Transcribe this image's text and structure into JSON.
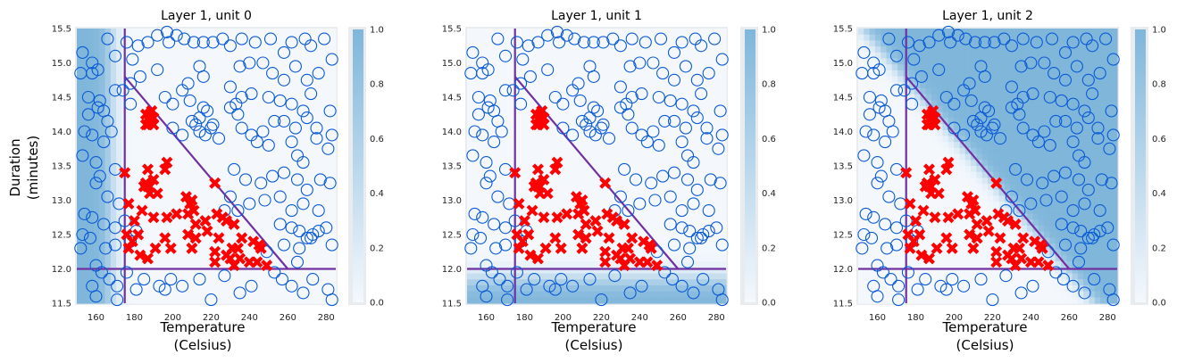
{
  "colors": {
    "low": "#f4f8fd",
    "high": "#7fb6da",
    "good_marker": "#ff0000",
    "bad_marker": "#0a5ad6",
    "lines": "#7030a0",
    "frame": "#e9ecef"
  },
  "shared": {
    "xlabel_line1": "Temperature",
    "xlabel_line2": "(Celsius)",
    "ylabel_line1": "Duration",
    "ylabel_line2": "(minutes)",
    "colorbar_ticks": [
      "0.0",
      "0.2",
      "0.4",
      "0.6",
      "0.8",
      "1.0"
    ]
  },
  "chart_data": [
    {
      "type": "scatter",
      "title": "Layer 1, unit 0",
      "xlabel": "Temperature (Celsius)",
      "ylabel": "Duration (minutes)",
      "xlim": [
        150,
        285
      ],
      "ylim": [
        11.5,
        15.5
      ],
      "xticks": [
        160,
        180,
        200,
        220,
        240,
        260,
        280
      ],
      "yticks": [
        11.5,
        12.0,
        12.5,
        13.0,
        13.5,
        14.0,
        14.5,
        15.0,
        15.5
      ],
      "background": "unit activation high where Temperature < ~175",
      "colorbar_range": [
        0,
        1
      ]
    },
    {
      "type": "scatter",
      "title": "Layer 1, unit 1",
      "xlabel": "Temperature (Celsius)",
      "ylabel": "",
      "xlim": [
        150,
        285
      ],
      "ylim": [
        11.5,
        15.5
      ],
      "xticks": [
        160,
        180,
        200,
        220,
        240,
        260,
        280
      ],
      "yticks": [
        11.5,
        12.0,
        12.5,
        13.0,
        13.5,
        14.0,
        14.5,
        15.0,
        15.5
      ],
      "background": "unit activation high where Duration < ~12",
      "colorbar_range": [
        0,
        1
      ]
    },
    {
      "type": "scatter",
      "title": "Layer 1, unit 2",
      "xlabel": "Temperature (Celsius)",
      "ylabel": "",
      "xlim": [
        150,
        285
      ],
      "ylim": [
        11.5,
        15.5
      ],
      "xticks": [
        160,
        180,
        200,
        220,
        240,
        260,
        280
      ],
      "yticks": [
        11.5,
        12.0,
        12.5,
        13.0,
        13.5,
        14.0,
        14.5,
        15.0,
        15.5
      ],
      "background": "unit activation high above diagonal line from (175,14.8) to (260,12)",
      "colorbar_range": [
        0,
        1
      ]
    }
  ],
  "boundaries": {
    "vertical_x": 175,
    "horizontal_y": 12.0,
    "diagonal": [
      [
        175,
        14.8
      ],
      [
        260,
        12.0
      ]
    ]
  },
  "points": {
    "good": [
      [
        186,
        14.25
      ],
      [
        188,
        14.15
      ],
      [
        190,
        14.2
      ],
      [
        187,
        14.1
      ],
      [
        189,
        14.3
      ],
      [
        188,
        14.2
      ],
      [
        186,
        14.1
      ],
      [
        190,
        14.1
      ],
      [
        188,
        14.25
      ],
      [
        175,
        13.4
      ],
      [
        187,
        13.45
      ],
      [
        196,
        13.45
      ],
      [
        197,
        13.55
      ],
      [
        186,
        13.25
      ],
      [
        188,
        13.2
      ],
      [
        190,
        13.3
      ],
      [
        185,
        13.2
      ],
      [
        188,
        13.1
      ],
      [
        192,
        13.1
      ],
      [
        187,
        13.2
      ],
      [
        207,
        13.05
      ],
      [
        210,
        13.0
      ],
      [
        209,
        12.95
      ],
      [
        222,
        13.25
      ],
      [
        211,
        12.85
      ],
      [
        177,
        12.95
      ],
      [
        180,
        12.7
      ],
      [
        184,
        12.85
      ],
      [
        190,
        12.75
      ],
      [
        197,
        12.75
      ],
      [
        202,
        12.8
      ],
      [
        208,
        12.8
      ],
      [
        212,
        12.65
      ],
      [
        217,
        12.7
      ],
      [
        223,
        12.8
      ],
      [
        226,
        12.75
      ],
      [
        228,
        12.7
      ],
      [
        232,
        12.65
      ],
      [
        176,
        12.5
      ],
      [
        179,
        12.4
      ],
      [
        182,
        12.5
      ],
      [
        196,
        12.45
      ],
      [
        208,
        12.5
      ],
      [
        212,
        12.45
      ],
      [
        218,
        12.55
      ],
      [
        224,
        12.45
      ],
      [
        236,
        12.45
      ],
      [
        242,
        12.4
      ],
      [
        177,
        12.3
      ],
      [
        191,
        12.3
      ],
      [
        199,
        12.3
      ],
      [
        210,
        12.3
      ],
      [
        222,
        12.25
      ],
      [
        231,
        12.3
      ],
      [
        246,
        12.3
      ],
      [
        183,
        12.2
      ],
      [
        187,
        12.15
      ],
      [
        228,
        12.2
      ],
      [
        235,
        12.15
      ],
      [
        240,
        12.1
      ],
      [
        249,
        12.05
      ],
      [
        222,
        12.1
      ],
      [
        232,
        12.05
      ],
      [
        230,
        12.15
      ],
      [
        244,
        12.1
      ],
      [
        245,
        12.35
      ],
      [
        234,
        12.3
      ]
    ],
    "bad": [
      [
        153,
        15.15
      ],
      [
        158,
        15.0
      ],
      [
        166,
        15.35
      ],
      [
        170,
        15.1
      ],
      [
        176,
        15.3
      ],
      [
        179,
        15.05
      ],
      [
        182,
        15.25
      ],
      [
        187,
        15.3
      ],
      [
        192,
        15.4
      ],
      [
        197,
        15.45
      ],
      [
        198,
        15.3
      ],
      [
        202,
        15.4
      ],
      [
        206,
        15.35
      ],
      [
        211,
        15.3
      ],
      [
        216,
        15.3
      ],
      [
        221,
        15.3
      ],
      [
        226,
        15.35
      ],
      [
        230,
        15.25
      ],
      [
        236,
        15.35
      ],
      [
        243,
        15.3
      ],
      [
        251,
        15.35
      ],
      [
        258,
        15.15
      ],
      [
        262,
        15.3
      ],
      [
        269,
        15.35
      ],
      [
        272,
        15.25
      ],
      [
        279,
        15.35
      ],
      [
        152,
        14.85
      ],
      [
        158,
        14.85
      ],
      [
        161,
        14.9
      ],
      [
        174,
        14.6
      ],
      [
        178,
        14.7
      ],
      [
        183,
        14.8
      ],
      [
        192,
        14.9
      ],
      [
        205,
        14.6
      ],
      [
        208,
        14.7
      ],
      [
        214,
        14.95
      ],
      [
        216,
        14.8
      ],
      [
        230,
        14.65
      ],
      [
        235,
        14.95
      ],
      [
        240,
        15.0
      ],
      [
        247,
        15.0
      ],
      [
        252,
        14.85
      ],
      [
        258,
        14.75
      ],
      [
        264,
        14.95
      ],
      [
        270,
        14.75
      ],
      [
        276,
        14.85
      ],
      [
        283,
        15.05
      ],
      [
        156,
        14.5
      ],
      [
        162,
        14.45
      ],
      [
        164,
        14.3
      ],
      [
        170,
        14.6
      ],
      [
        178,
        14.4
      ],
      [
        196,
        14.5
      ],
      [
        200,
        14.4
      ],
      [
        209,
        14.45
      ],
      [
        214,
        14.2
      ],
      [
        216,
        14.35
      ],
      [
        218,
        14.3
      ],
      [
        221,
        14.1
      ],
      [
        230,
        14.35
      ],
      [
        233,
        14.4
      ],
      [
        236,
        14.5
      ],
      [
        241,
        14.55
      ],
      [
        250,
        14.5
      ],
      [
        256,
        14.45
      ],
      [
        262,
        14.4
      ],
      [
        268,
        14.3
      ],
      [
        272,
        14.55
      ],
      [
        282,
        14.3
      ],
      [
        156,
        14.25
      ],
      [
        161,
        14.35
      ],
      [
        166,
        14.15
      ],
      [
        200,
        14.05
      ],
      [
        205,
        13.95
      ],
      [
        210,
        14.15
      ],
      [
        212,
        14.1
      ],
      [
        214,
        14.0
      ],
      [
        217,
        13.95
      ],
      [
        220,
        14.05
      ],
      [
        224,
        13.9
      ],
      [
        234,
        14.25
      ],
      [
        236,
        14.05
      ],
      [
        241,
        13.95
      ],
      [
        247,
        14.0
      ],
      [
        253,
        14.15
      ],
      [
        258,
        14.15
      ],
      [
        264,
        14.05
      ],
      [
        270,
        14.2
      ],
      [
        275,
        14.05
      ],
      [
        283,
        13.95
      ],
      [
        154,
        14.0
      ],
      [
        158,
        13.95
      ],
      [
        164,
        13.85
      ],
      [
        168,
        14.0
      ],
      [
        244,
        13.85
      ],
      [
        250,
        13.8
      ],
      [
        262,
        13.85
      ],
      [
        265,
        13.65
      ],
      [
        268,
        13.55
      ],
      [
        275,
        13.9
      ],
      [
        281,
        13.75
      ],
      [
        153,
        13.65
      ],
      [
        160,
        13.55
      ],
      [
        162,
        13.35
      ],
      [
        170,
        13.45
      ],
      [
        232,
        13.45
      ],
      [
        238,
        13.3
      ],
      [
        246,
        13.25
      ],
      [
        252,
        13.35
      ],
      [
        258,
        13.4
      ],
      [
        265,
        13.3
      ],
      [
        270,
        13.15
      ],
      [
        277,
        13.3
      ],
      [
        282,
        13.25
      ],
      [
        160,
        13.25
      ],
      [
        166,
        13.05
      ],
      [
        172,
        12.95
      ],
      [
        181,
        12.55
      ],
      [
        230,
        13.05
      ],
      [
        240,
        12.95
      ],
      [
        248,
        13.0
      ],
      [
        256,
        13.05
      ],
      [
        262,
        12.85
      ],
      [
        268,
        12.95
      ],
      [
        276,
        12.85
      ],
      [
        154,
        12.8
      ],
      [
        158,
        12.75
      ],
      [
        164,
        12.65
      ],
      [
        170,
        12.6
      ],
      [
        175,
        12.7
      ],
      [
        227,
        12.85
      ],
      [
        234,
        12.85
      ],
      [
        256,
        12.65
      ],
      [
        262,
        12.6
      ],
      [
        266,
        12.55
      ],
      [
        270,
        12.45
      ],
      [
        273,
        12.5
      ],
      [
        276,
        12.55
      ],
      [
        280,
        12.6
      ],
      [
        153,
        12.5
      ],
      [
        157,
        12.45
      ],
      [
        165,
        12.3
      ],
      [
        170,
        12.35
      ],
      [
        178,
        12.4
      ],
      [
        249,
        12.25
      ],
      [
        258,
        12.35
      ],
      [
        266,
        12.3
      ],
      [
        272,
        12.45
      ],
      [
        283,
        12.35
      ],
      [
        152,
        12.3
      ],
      [
        160,
        12.05
      ],
      [
        163,
        11.95
      ],
      [
        167,
        11.85
      ],
      [
        171,
        11.75
      ],
      [
        181,
        11.7
      ],
      [
        193,
        11.75
      ],
      [
        196,
        11.7
      ],
      [
        205,
        11.75
      ],
      [
        220,
        11.55
      ],
      [
        235,
        11.65
      ],
      [
        241,
        11.75
      ],
      [
        253,
        11.95
      ],
      [
        257,
        11.85
      ],
      [
        262,
        11.75
      ],
      [
        268,
        11.65
      ],
      [
        273,
        11.85
      ],
      [
        281,
        11.7
      ],
      [
        283,
        11.55
      ],
      [
        158,
        11.75
      ],
      [
        160,
        11.6
      ],
      [
        171,
        11.55
      ],
      [
        176,
        11.95
      ],
      [
        185,
        11.85
      ],
      [
        227,
        11.9
      ],
      [
        214,
        11.85
      ],
      [
        199,
        11.85
      ],
      [
        265,
        12.1
      ]
    ]
  }
}
